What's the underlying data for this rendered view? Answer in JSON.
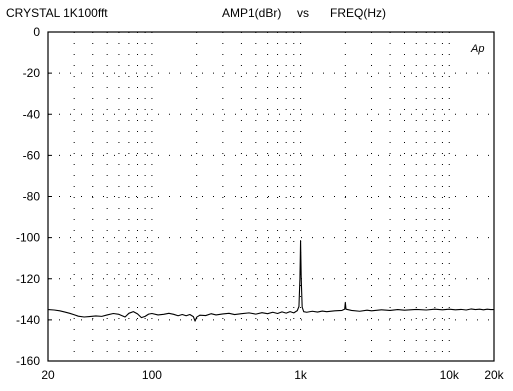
{
  "header": {
    "left_title": "CRYSTAL 1K100fft",
    "y_quantity": "AMP1(dBr)",
    "vs": "vs",
    "x_quantity": "FREQ(Hz)",
    "logo": "Ap"
  },
  "chart_data": {
    "type": "line",
    "title": "CRYSTAL 1K100fft",
    "ylabel": "AMP1(dBr)",
    "xlabel": "FREQ(Hz)",
    "x_scale": "log",
    "xlim": [
      20,
      20000
    ],
    "ylim": [
      -160,
      0
    ],
    "grid": "dotted",
    "x_ticks": [
      {
        "value": 20,
        "label": "20"
      },
      {
        "value": 100,
        "label": "100"
      },
      {
        "value": 1000,
        "label": "1k"
      },
      {
        "value": 10000,
        "label": "10k"
      },
      {
        "value": 20000,
        "label": "20k"
      }
    ],
    "y_ticks": [
      {
        "value": 0,
        "label": "0"
      },
      {
        "value": -20,
        "label": "-20"
      },
      {
        "value": -40,
        "label": "-40"
      },
      {
        "value": -60,
        "label": "-60"
      },
      {
        "value": -80,
        "label": "-80"
      },
      {
        "value": -100,
        "label": "-100"
      },
      {
        "value": -120,
        "label": "-120"
      },
      {
        "value": -140,
        "label": "-140"
      },
      {
        "value": -160,
        "label": "-160"
      }
    ],
    "series": [
      {
        "color": "#000000",
        "points": [
          [
            20,
            -135
          ],
          [
            22,
            -135.2
          ],
          [
            24,
            -135.6
          ],
          [
            26,
            -136.2
          ],
          [
            28,
            -136.8
          ],
          [
            30,
            -137.5
          ],
          [
            32,
            -138.2
          ],
          [
            35,
            -138.6
          ],
          [
            38,
            -138.4
          ],
          [
            42,
            -138.1
          ],
          [
            46,
            -138.3
          ],
          [
            50,
            -137.6
          ],
          [
            55,
            -136.9
          ],
          [
            60,
            -137.3
          ],
          [
            66,
            -138.6
          ],
          [
            70,
            -136.8
          ],
          [
            75,
            -136.0
          ],
          [
            80,
            -137.1
          ],
          [
            85,
            -138.9
          ],
          [
            90,
            -138.3
          ],
          [
            95,
            -137.2
          ],
          [
            100,
            -136.9
          ],
          [
            110,
            -137.6
          ],
          [
            120,
            -137.3
          ],
          [
            130,
            -136.8
          ],
          [
            140,
            -137.3
          ],
          [
            150,
            -138.0
          ],
          [
            160,
            -137.4
          ],
          [
            170,
            -138.0
          ],
          [
            180,
            -137.4
          ],
          [
            190,
            -138.4
          ],
          [
            195,
            -140.6
          ],
          [
            200,
            -138.7
          ],
          [
            210,
            -137.7
          ],
          [
            230,
            -137.9
          ],
          [
            250,
            -137.0
          ],
          [
            270,
            -137.6
          ],
          [
            300,
            -137.1
          ],
          [
            330,
            -136.8
          ],
          [
            360,
            -137.4
          ],
          [
            400,
            -137.0
          ],
          [
            450,
            -136.6
          ],
          [
            500,
            -137.2
          ],
          [
            550,
            -136.5
          ],
          [
            600,
            -137.0
          ],
          [
            650,
            -136.3
          ],
          [
            700,
            -136.9
          ],
          [
            750,
            -136.1
          ],
          [
            800,
            -136.7
          ],
          [
            850,
            -136.0
          ],
          [
            900,
            -136.6
          ],
          [
            950,
            -135.5
          ],
          [
            975,
            -133.5
          ],
          [
            990,
            -120
          ],
          [
            1000,
            -101.5
          ],
          [
            1010,
            -120
          ],
          [
            1025,
            -133.8
          ],
          [
            1050,
            -136.0
          ],
          [
            1100,
            -136.3
          ],
          [
            1200,
            -135.8
          ],
          [
            1300,
            -136.2
          ],
          [
            1400,
            -135.7
          ],
          [
            1500,
            -136.0
          ],
          [
            1700,
            -135.6
          ],
          [
            1900,
            -135.4
          ],
          [
            1980,
            -134.8
          ],
          [
            2000,
            -131.5
          ],
          [
            2020,
            -134.8
          ],
          [
            2200,
            -135.4
          ],
          [
            2500,
            -135.8
          ],
          [
            2800,
            -135.3
          ],
          [
            3000,
            -135.6
          ],
          [
            3500,
            -135.1
          ],
          [
            4000,
            -135.4
          ],
          [
            4500,
            -135.0
          ],
          [
            5000,
            -135.3
          ],
          [
            6000,
            -134.9
          ],
          [
            7000,
            -135.2
          ],
          [
            8000,
            -134.8
          ],
          [
            9000,
            -135.1
          ],
          [
            10000,
            -134.8
          ],
          [
            11000,
            -135.1
          ],
          [
            12000,
            -134.9
          ],
          [
            13000,
            -135.2
          ],
          [
            14000,
            -134.7
          ],
          [
            15000,
            -135.0
          ],
          [
            16000,
            -134.8
          ],
          [
            17000,
            -135.1
          ],
          [
            18000,
            -134.8
          ],
          [
            19000,
            -135.0
          ],
          [
            20000,
            -135.0
          ]
        ]
      }
    ]
  }
}
